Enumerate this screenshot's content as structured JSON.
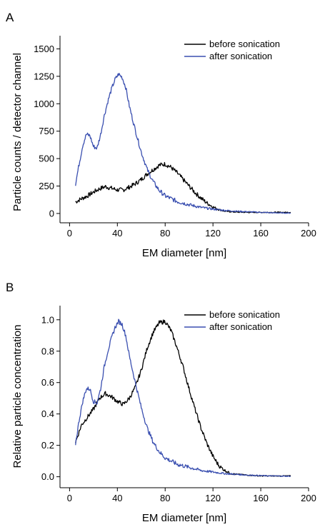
{
  "figure": {
    "panels": [
      {
        "letter": "A",
        "xlabel": "EM diameter [nm]",
        "ylabel": "Particle counts / detector channel",
        "xticks": [
          "0",
          "40",
          "80",
          "120",
          "160",
          "200"
        ],
        "yticks": [
          "0",
          "250",
          "500",
          "750",
          "1000",
          "1250",
          "1500"
        ],
        "legend": [
          "before sonication",
          "after sonication"
        ]
      },
      {
        "letter": "B",
        "xlabel": "EM diameter [nm]",
        "ylabel": "Relative particle concentration",
        "xticks": [
          "0",
          "40",
          "80",
          "120",
          "160",
          "200"
        ],
        "yticks": [
          "0.0",
          "0.2",
          "0.4",
          "0.6",
          "0.8",
          "1.0"
        ],
        "legend": [
          "before sonication",
          "after sonication"
        ]
      }
    ]
  },
  "colors": {
    "before": "#000000",
    "after": "#3a4fb0",
    "axis": "#000000"
  },
  "chart_data": [
    {
      "type": "line",
      "title": "",
      "xlabel": "EM diameter [nm]",
      "ylabel": "Particle counts / detector channel",
      "xlim": [
        -8,
        200
      ],
      "ylim": [
        -85,
        1620
      ],
      "legend_position": "top-right",
      "grid": false,
      "series": [
        {
          "name": "before sonication",
          "color": "#000000",
          "x": [
            5,
            10,
            15,
            20,
            25,
            30,
            35,
            40,
            45,
            50,
            55,
            60,
            65,
            70,
            75,
            80,
            85,
            90,
            95,
            100,
            105,
            110,
            115,
            120,
            125,
            130,
            140,
            150,
            160,
            170,
            185
          ],
          "y": [
            105,
            135,
            160,
            195,
            225,
            245,
            230,
            215,
            215,
            240,
            270,
            310,
            360,
            400,
            440,
            450,
            420,
            370,
            310,
            250,
            190,
            140,
            95,
            60,
            35,
            20,
            12,
            10,
            10,
            10,
            10
          ]
        },
        {
          "name": "after sonication",
          "color": "#3a4fb0",
          "x": [
            5,
            8,
            11,
            14,
            17,
            20,
            23,
            26,
            29,
            32,
            35,
            38,
            41,
            44,
            47,
            50,
            55,
            60,
            65,
            70,
            75,
            80,
            90,
            100,
            110,
            120,
            130,
            140,
            150,
            160,
            170,
            185
          ],
          "y": [
            270,
            450,
            620,
            720,
            710,
            610,
            595,
            720,
            890,
            1020,
            1130,
            1220,
            1270,
            1240,
            1150,
            980,
            760,
            560,
            400,
            290,
            210,
            160,
            110,
            80,
            55,
            40,
            28,
            20,
            15,
            10,
            6,
            4
          ]
        }
      ]
    },
    {
      "type": "line",
      "title": "",
      "xlabel": "EM diameter [nm]",
      "ylabel": "Relative particle concentration",
      "xlim": [
        -8,
        200
      ],
      "ylim": [
        -0.07,
        1.09
      ],
      "legend_position": "top-right",
      "grid": false,
      "series": [
        {
          "name": "before sonication",
          "color": "#000000",
          "x": [
            5,
            10,
            15,
            20,
            25,
            30,
            35,
            40,
            45,
            50,
            55,
            60,
            65,
            70,
            75,
            80,
            85,
            90,
            95,
            100,
            105,
            110,
            115,
            120,
            125,
            130,
            135,
            140,
            150,
            160,
            170,
            185
          ],
          "y": [
            0.22,
            0.33,
            0.38,
            0.43,
            0.5,
            0.53,
            0.51,
            0.48,
            0.46,
            0.5,
            0.57,
            0.68,
            0.82,
            0.92,
            0.98,
            0.99,
            0.93,
            0.82,
            0.7,
            0.56,
            0.43,
            0.31,
            0.21,
            0.13,
            0.07,
            0.04,
            0.02,
            0.015,
            0.01,
            0.005,
            0.005,
            0.005
          ]
        },
        {
          "name": "after sonication",
          "color": "#3a4fb0",
          "x": [
            5,
            8,
            11,
            14,
            17,
            20,
            23,
            26,
            29,
            32,
            35,
            38,
            41,
            44,
            47,
            50,
            55,
            60,
            65,
            70,
            75,
            80,
            90,
            100,
            110,
            120,
            130,
            140,
            150,
            160,
            170,
            185
          ],
          "y": [
            0.21,
            0.36,
            0.48,
            0.56,
            0.56,
            0.48,
            0.47,
            0.56,
            0.7,
            0.8,
            0.88,
            0.95,
            0.99,
            0.97,
            0.9,
            0.77,
            0.6,
            0.44,
            0.31,
            0.22,
            0.16,
            0.12,
            0.08,
            0.06,
            0.04,
            0.03,
            0.02,
            0.015,
            0.01,
            0.007,
            0.005,
            0.003
          ]
        }
      ]
    }
  ]
}
